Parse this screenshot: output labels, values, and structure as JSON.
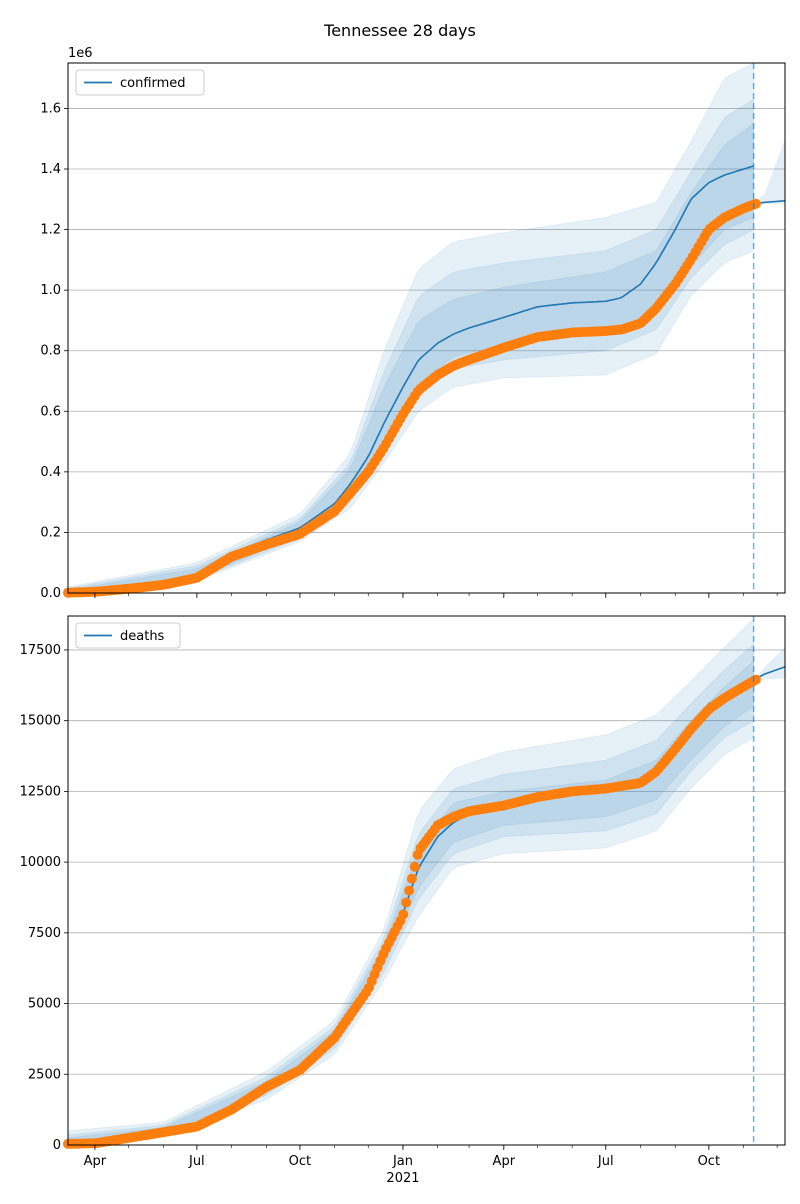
{
  "title": "Tennessee 28 days",
  "colors": {
    "model_line": "#1f77b4",
    "observed_points": "#ff7f0e",
    "band": "#1f77b4",
    "grid": "#b0b0b0",
    "forecast_line": "#1f77b4"
  },
  "x_axis": {
    "tick_labels": [
      "Apr",
      "Jul",
      "Oct",
      "Jan",
      "Apr",
      "Jul",
      "Oct"
    ],
    "tick_dates": [
      "2020-04-01",
      "2020-07-01",
      "2020-10-01",
      "2021-01-01",
      "2021-04-01",
      "2021-07-01",
      "2021-10-01"
    ],
    "year_label": "2021",
    "range": [
      "2020-03-08",
      "2021-12-08"
    ]
  },
  "forecast_start_date": "2021-11-10",
  "chart_data": [
    {
      "type": "line",
      "name": "confirmed",
      "legend": "confirmed",
      "legend_position": "upper-left",
      "grid": "horizontal",
      "y_multiplier_label": "1e6",
      "ylim": [
        0,
        1.75
      ],
      "y_ticks": [
        0.0,
        0.2,
        0.4,
        0.6,
        0.8,
        1.0,
        1.2,
        1.4,
        1.6
      ],
      "y_tick_labels": [
        "0.0",
        "0.2",
        "0.4",
        "0.6",
        "0.8",
        "1.0",
        "1.2",
        "1.4",
        "1.6"
      ],
      "model": {
        "x": [
          "2020-03-08",
          "2020-04-01",
          "2020-05-01",
          "2020-06-01",
          "2020-07-01",
          "2020-08-01",
          "2020-09-01",
          "2020-10-01",
          "2020-11-01",
          "2020-11-15",
          "2020-12-01",
          "2020-12-15",
          "2021-01-01",
          "2021-01-15",
          "2021-02-01",
          "2021-02-15",
          "2021-03-01",
          "2021-04-01",
          "2021-05-01",
          "2021-06-01",
          "2021-07-01",
          "2021-07-15",
          "2021-08-01",
          "2021-08-15",
          "2021-09-01",
          "2021-09-15",
          "2021-10-01",
          "2021-10-15",
          "2021-11-10"
        ],
        "y": [
          0.001,
          0.004,
          0.015,
          0.03,
          0.06,
          0.13,
          0.175,
          0.215,
          0.295,
          0.36,
          0.45,
          0.56,
          0.68,
          0.77,
          0.825,
          0.855,
          0.875,
          0.91,
          0.945,
          0.958,
          0.963,
          0.975,
          1.02,
          1.09,
          1.2,
          1.3,
          1.355,
          1.38,
          1.41
        ]
      },
      "bands": [
        {
          "x": [
            "2020-03-08",
            "2020-07-01",
            "2020-10-01",
            "2020-11-15",
            "2020-12-15",
            "2021-01-15",
            "2021-02-15",
            "2021-04-01",
            "2021-07-01",
            "2021-08-15",
            "2021-09-15",
            "2021-10-15",
            "2021-11-10"
          ],
          "lower": [
            0,
            0.04,
            0.17,
            0.28,
            0.43,
            0.6,
            0.68,
            0.71,
            0.72,
            0.79,
            0.98,
            1.09,
            1.13
          ],
          "upper": [
            0.02,
            0.1,
            0.26,
            0.46,
            0.8,
            1.07,
            1.16,
            1.19,
            1.24,
            1.29,
            1.49,
            1.7,
            1.75
          ]
        },
        {
          "x": [
            "2020-03-08",
            "2020-07-01",
            "2020-10-01",
            "2020-11-15",
            "2020-12-15",
            "2021-01-15",
            "2021-02-15",
            "2021-04-01",
            "2021-07-01",
            "2021-08-15",
            "2021-09-15",
            "2021-10-15",
            "2021-11-10"
          ],
          "lower": [
            0,
            0.045,
            0.18,
            0.3,
            0.46,
            0.65,
            0.74,
            0.77,
            0.8,
            0.87,
            1.04,
            1.15,
            1.2
          ],
          "upper": [
            0.015,
            0.09,
            0.245,
            0.43,
            0.73,
            0.98,
            1.06,
            1.09,
            1.13,
            1.2,
            1.39,
            1.57,
            1.63
          ]
        },
        {
          "x": [
            "2020-03-08",
            "2020-07-01",
            "2020-10-01",
            "2020-11-15",
            "2020-12-15",
            "2021-01-15",
            "2021-02-15",
            "2021-04-01",
            "2021-07-01",
            "2021-08-15",
            "2021-09-15",
            "2021-10-15",
            "2021-11-10"
          ],
          "lower": [
            0,
            0.05,
            0.19,
            0.32,
            0.49,
            0.69,
            0.78,
            0.82,
            0.86,
            0.93,
            1.08,
            1.2,
            1.24
          ],
          "upper": [
            0.01,
            0.08,
            0.235,
            0.41,
            0.68,
            0.9,
            0.97,
            1.01,
            1.06,
            1.13,
            1.32,
            1.48,
            1.55
          ]
        }
      ],
      "forecast": {
        "x": [
          "2021-11-10",
          "2021-11-20",
          "2021-12-08"
        ],
        "y": [
          1.285,
          1.29,
          1.295
        ],
        "lower": [
          1.285,
          1.285,
          1.285
        ],
        "upper": [
          1.285,
          1.32,
          1.5
        ]
      },
      "observed": {
        "x": [
          "2020-03-08",
          "2020-04-01",
          "2020-05-01",
          "2020-06-01",
          "2020-07-01",
          "2020-08-01",
          "2020-09-01",
          "2020-10-01",
          "2020-11-01",
          "2020-11-15",
          "2020-12-01",
          "2020-12-15",
          "2021-01-01",
          "2021-01-15",
          "2021-02-01",
          "2021-02-15",
          "2021-03-01",
          "2021-04-01",
          "2021-05-01",
          "2021-06-01",
          "2021-07-01",
          "2021-07-15",
          "2021-08-01",
          "2021-08-15",
          "2021-09-01",
          "2021-09-15",
          "2021-10-01",
          "2021-10-15",
          "2021-11-01",
          "2021-11-12"
        ],
        "y": [
          0.001,
          0.004,
          0.014,
          0.027,
          0.05,
          0.12,
          0.16,
          0.195,
          0.27,
          0.33,
          0.4,
          0.48,
          0.59,
          0.67,
          0.72,
          0.75,
          0.77,
          0.81,
          0.845,
          0.86,
          0.865,
          0.87,
          0.89,
          0.94,
          1.02,
          1.1,
          1.2,
          1.24,
          1.27,
          1.285
        ]
      }
    },
    {
      "type": "line",
      "name": "deaths",
      "legend": "deaths",
      "legend_position": "upper-left",
      "grid": "horizontal",
      "ylim": [
        0,
        18700
      ],
      "y_ticks": [
        0,
        2500,
        5000,
        7500,
        10000,
        12500,
        15000,
        17500
      ],
      "y_tick_labels": [
        "0",
        "2500",
        "5000",
        "7500",
        "10000",
        "12500",
        "15000",
        "17500"
      ],
      "model": {
        "x": [
          "2020-03-08",
          "2020-04-01",
          "2020-05-01",
          "2020-06-01",
          "2020-07-01",
          "2020-08-01",
          "2020-09-01",
          "2020-10-01",
          "2020-11-01",
          "2020-12-01",
          "2020-12-15",
          "2021-01-01",
          "2021-01-15",
          "2021-02-01",
          "2021-02-15",
          "2021-03-01",
          "2021-04-01",
          "2021-05-01",
          "2021-06-01",
          "2021-07-01",
          "2021-08-01",
          "2021-09-01",
          "2021-10-01",
          "2021-11-10"
        ],
        "y": [
          30,
          80,
          250,
          450,
          700,
          1200,
          2000,
          2700,
          3800,
          5500,
          6700,
          8200,
          9800,
          10900,
          11400,
          11700,
          11950,
          12200,
          12450,
          12550,
          12800,
          14000,
          15600,
          16300
        ]
      },
      "bands": [
        {
          "x": [
            "2020-03-08",
            "2020-06-01",
            "2020-09-01",
            "2020-11-01",
            "2020-12-15",
            "2021-01-15",
            "2021-02-15",
            "2021-04-01",
            "2021-07-01",
            "2021-08-15",
            "2021-09-15",
            "2021-10-15",
            "2021-11-10"
          ],
          "lower": [
            0,
            350,
            1600,
            3200,
            5800,
            8100,
            9800,
            10300,
            10500,
            11100,
            12600,
            13800,
            14400
          ],
          "upper": [
            500,
            800,
            2600,
            4400,
            7600,
            11800,
            13300,
            13900,
            14500,
            15200,
            16400,
            17600,
            18600
          ]
        },
        {
          "x": [
            "2020-03-08",
            "2020-06-01",
            "2020-09-01",
            "2020-11-01",
            "2020-12-15",
            "2021-01-15",
            "2021-02-15",
            "2021-04-01",
            "2021-07-01",
            "2021-08-15",
            "2021-09-15",
            "2021-10-15",
            "2021-11-10"
          ],
          "lower": [
            0,
            380,
            1750,
            3400,
            6100,
            8700,
            10300,
            10900,
            11100,
            11700,
            13200,
            14400,
            15000
          ],
          "upper": [
            350,
            700,
            2400,
            4200,
            7300,
            11000,
            12600,
            13100,
            13600,
            14300,
            15600,
            16800,
            17700
          ]
        },
        {
          "x": [
            "2020-03-08",
            "2020-06-01",
            "2020-09-01",
            "2020-11-01",
            "2020-12-15",
            "2021-01-15",
            "2021-02-15",
            "2021-04-01",
            "2021-07-01",
            "2021-08-15",
            "2021-09-15",
            "2021-10-15",
            "2021-11-10"
          ],
          "lower": [
            0,
            410,
            1850,
            3550,
            6350,
            9100,
            10700,
            11300,
            11600,
            12200,
            13600,
            14800,
            15500
          ],
          "upper": [
            250,
            620,
            2250,
            4050,
            7050,
            10500,
            12100,
            12500,
            12900,
            13600,
            15000,
            16200,
            17100
          ]
        }
      ],
      "forecast": {
        "x": [
          "2021-11-10",
          "2021-11-20",
          "2021-12-08"
        ],
        "y": [
          16450,
          16650,
          16900
        ],
        "lower": [
          16450,
          16450,
          16500
        ],
        "upper": [
          16450,
          16900,
          17600
        ]
      },
      "observed": {
        "x": [
          "2020-03-08",
          "2020-04-01",
          "2020-05-01",
          "2020-06-01",
          "2020-07-01",
          "2020-08-01",
          "2020-09-01",
          "2020-10-01",
          "2020-11-01",
          "2020-12-01",
          "2020-12-15",
          "2021-01-01",
          "2021-01-15",
          "2021-02-01",
          "2021-02-15",
          "2021-03-01",
          "2021-04-01",
          "2021-05-01",
          "2021-06-01",
          "2021-07-01",
          "2021-08-01",
          "2021-08-15",
          "2021-09-01",
          "2021-09-15",
          "2021-10-01",
          "2021-10-15",
          "2021-11-01",
          "2021-11-12"
        ],
        "y": [
          40,
          60,
          250,
          450,
          650,
          1250,
          2050,
          2650,
          3800,
          5500,
          6800,
          8100,
          10400,
          11300,
          11600,
          11800,
          12000,
          12300,
          12500,
          12600,
          12800,
          13200,
          14000,
          14700,
          15400,
          15800,
          16200,
          16450
        ]
      }
    }
  ]
}
